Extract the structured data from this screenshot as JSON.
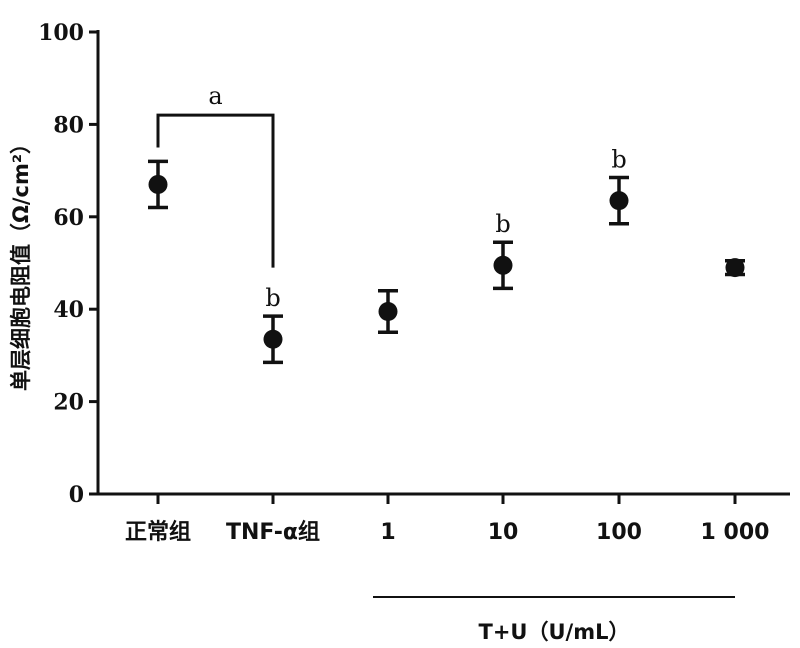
{
  "chart_data": {
    "type": "scatter",
    "ylabel": "单层细胞电阻值（Ω/cm²）",
    "ylim": [
      0,
      100
    ],
    "yticks": [
      0,
      20,
      40,
      60,
      80,
      100
    ],
    "categories": [
      "正常组",
      "TNF-α组",
      "1",
      "10",
      "100",
      "1 000"
    ],
    "means": [
      67,
      33.5,
      39.5,
      49.5,
      63.5,
      49
    ],
    "errors": [
      5,
      5,
      4.5,
      5,
      5,
      1.5
    ],
    "labels": [
      "",
      "b",
      "",
      "b",
      "b",
      ""
    ],
    "bracket": {
      "from": 0,
      "to": 1,
      "label": "a",
      "level": 82
    },
    "group": {
      "from": 2,
      "to": 5,
      "label": "T+U（U/mL）"
    },
    "grid": false,
    "error_bars": true
  }
}
